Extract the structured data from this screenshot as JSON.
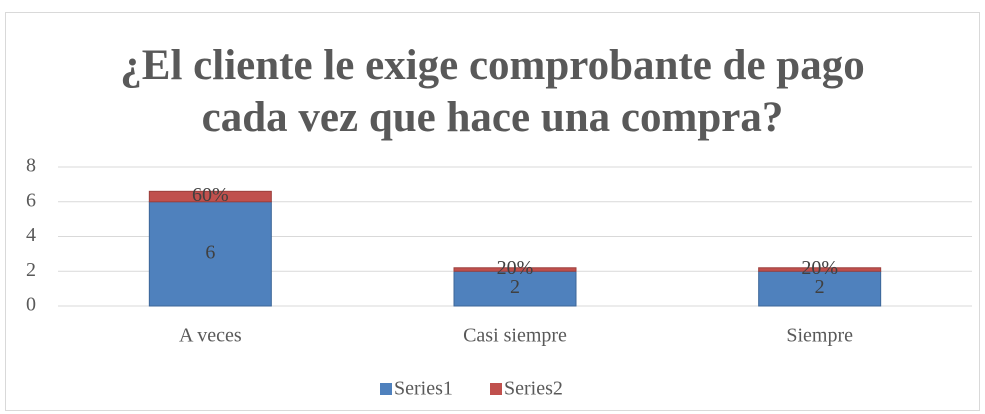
{
  "chart_data": {
    "type": "stacked_bar",
    "title": "¿El cliente le exige comprobante de pago cada vez que hace una compra?",
    "categories": [
      "A veces",
      "Casi siempre",
      "Siempre"
    ],
    "series": [
      {
        "name": "Series1",
        "color": "#4f81bd",
        "values": [
          6,
          2,
          2
        ]
      },
      {
        "name": "Series2",
        "color": "#c0504d",
        "values": [
          0.6,
          0.2,
          0.2
        ],
        "value_labels": [
          "60%",
          "20%",
          "20%"
        ]
      }
    ],
    "ylim": [
      0,
      8
    ],
    "yticks": [
      0,
      2,
      4,
      6,
      8
    ],
    "grid": true,
    "legend": "bottom"
  }
}
